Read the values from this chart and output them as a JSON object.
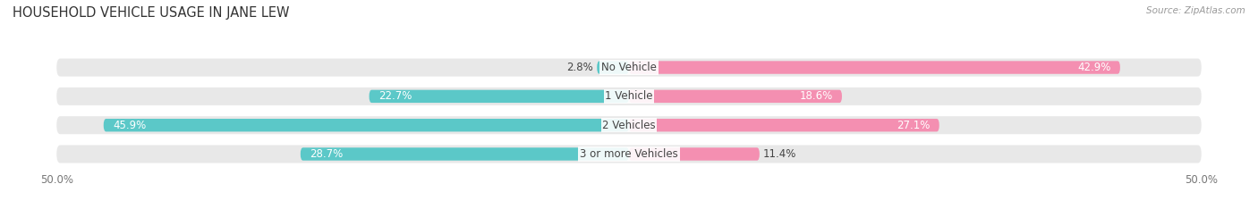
{
  "title": "HOUSEHOLD VEHICLE USAGE IN JANE LEW",
  "source": "Source: ZipAtlas.com",
  "categories": [
    "No Vehicle",
    "1 Vehicle",
    "2 Vehicles",
    "3 or more Vehicles"
  ],
  "owner_values": [
    2.8,
    22.7,
    45.9,
    28.7
  ],
  "renter_values": [
    42.9,
    18.6,
    27.1,
    11.4
  ],
  "owner_color": "#5bc8c8",
  "renter_color": "#f48fb1",
  "bar_bg_color": "#e8e8e8",
  "axis_limit": 50.0,
  "bar_height": 0.62,
  "title_fontsize": 10.5,
  "label_fontsize": 8.5,
  "cat_fontsize": 8.5,
  "tick_fontsize": 8.5,
  "legend_fontsize": 8.5
}
